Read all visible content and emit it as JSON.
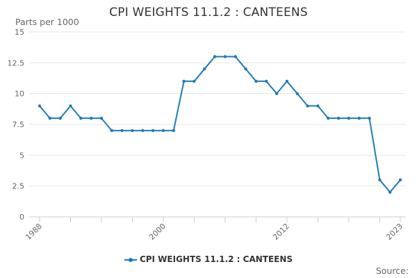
{
  "chart_data": {
    "type": "line",
    "title": "CPI WEIGHTS 11.1.2 : CANTEENS",
    "ylabel": "Parts per 1000",
    "xlabel": "",
    "ylim": [
      0,
      15
    ],
    "y_ticks": [
      0,
      2.5,
      5,
      7.5,
      10,
      12.5,
      15
    ],
    "y_tick_labels": [
      "0",
      "2.5",
      "5",
      "7.5",
      "10",
      "12.5",
      "15"
    ],
    "x_range": [
      1988,
      2023
    ],
    "x_tick_labels": [
      "1988",
      "2000",
      "2012",
      "2023"
    ],
    "x_tick_values": [
      1988,
      2000,
      2012,
      2023
    ],
    "grid": true,
    "legend_position": "bottom",
    "series": [
      {
        "name": "CPI WEIGHTS 11.1.2 : CANTEENS",
        "color": "#1f7bb6",
        "x": [
          1988,
          1989,
          1990,
          1991,
          1992,
          1993,
          1994,
          1995,
          1996,
          1997,
          1998,
          1999,
          2000,
          2001,
          2002,
          2003,
          2004,
          2005,
          2006,
          2007,
          2008,
          2009,
          2010,
          2011,
          2012,
          2013,
          2014,
          2015,
          2016,
          2017,
          2018,
          2019,
          2020,
          2021,
          2022,
          2023
        ],
        "values": [
          9,
          8,
          8,
          9,
          8,
          8,
          8,
          7,
          7,
          7,
          7,
          7,
          7,
          7,
          11,
          11,
          12,
          13,
          13,
          13,
          12,
          11,
          11,
          10,
          11,
          10,
          9,
          9,
          8,
          8,
          8,
          8,
          8,
          3,
          2,
          3
        ]
      }
    ]
  },
  "legend": {
    "label": "CPI WEIGHTS 11.1.2 : CANTEENS"
  },
  "source": {
    "label": "Source:"
  }
}
